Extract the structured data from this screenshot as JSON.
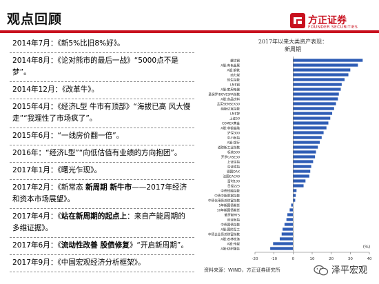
{
  "header": {
    "title": "观点回顾"
  },
  "logo": {
    "cn": "方正证券",
    "en": "FOUNDER SECURITIES"
  },
  "timeline": [
    {
      "parts": [
        {
          "t": "2014年7月：《新5%比旧8%好》。",
          "b": false
        }
      ]
    },
    {
      "parts": [
        {
          "t": "2014年8月：《论对熊市的最后一战》“5000点不是梦”。",
          "b": false
        }
      ]
    },
    {
      "parts": [
        {
          "t": "2014年12月：《改革牛》。",
          "b": false
        }
      ]
    },
    {
      "parts": [
        {
          "t": "2015年4月：《经济L型 牛市有顶部》“海拔已高 风大慢走”“我理性了市场疯了”。",
          "b": false
        }
      ]
    },
    {
      "parts": [
        {
          "t": "2015年6月：“一线房价翻一倍”。",
          "b": false
        }
      ]
    },
    {
      "parts": [
        {
          "t": "2016年：“经济L型”“向低估值有业绩的方向抱团”。",
          "b": false
        }
      ]
    },
    {
      "parts": [
        {
          "t": "2017年1月：《曙光乍现》。",
          "b": false
        }
      ]
    },
    {
      "parts": [
        {
          "t": "2017年2月：《新常态 ",
          "b": false
        },
        {
          "t": "新周期 新牛市",
          "b": true
        },
        {
          "t": "——2017年经济和资本市场展望》。",
          "b": false
        }
      ]
    },
    {
      "parts": [
        {
          "t": "2017年4月：《",
          "b": false
        },
        {
          "t": "站在新周期的起点上",
          "b": true
        },
        {
          "t": "：来自产能周期的多维证据》。",
          "b": false
        }
      ]
    },
    {
      "parts": [
        {
          "t": "2017年6月：《",
          "b": false
        },
        {
          "t": "流动性改善 股债修复",
          "b": true
        },
        {
          "t": "》“开启新周期”。",
          "b": false
        }
      ]
    },
    {
      "parts": [
        {
          "t": "2017年9月：《中国宏观经济分析框架》。",
          "b": false
        }
      ]
    }
  ],
  "chart_data": {
    "type": "bar",
    "orientation": "horizontal",
    "title": "2017年以来大类资产表现：",
    "subtitle": "新周期",
    "unit_label": "(%)",
    "xlim": [
      -20,
      40
    ],
    "xticks": [
      -20,
      -10,
      0,
      10,
      20,
      30,
      40
    ],
    "grid": false,
    "legend": "none",
    "bar_color": "#2f5db5",
    "categories": [
      "螺纹钢",
      "A股:有色金属",
      "A股:钢铁",
      "动力煤",
      "恒生指数",
      "LME铜",
      "A股:家用电器",
      "圣保罗IBOVESPA指数",
      "A股:食品饮料",
      "孟买SENSEX30",
      "纳斯达克指数",
      "LME锌",
      "上证50",
      "COMEX黄金",
      "A股:非银金融",
      "沪深300",
      "中小板指",
      "A股:银行",
      "道琼斯工业指数",
      "标普500",
      "开罗CASE30",
      "上证综指",
      "深证成指",
      "德国DAX",
      "法国CAC40",
      "富时100",
      "日经225",
      "中债短融指数",
      "中债中期票据指数",
      "中债信用债总财富指数",
      "5年期国债期货",
      "10年期国债期货",
      "俄罗斯RTS",
      "创业板指",
      "中债国债指数",
      "A股:国防军工",
      "中债企业债总财富指数",
      "A股:农林牧渔",
      "A股:传媒",
      "A股:纺织服装"
    ],
    "values": [
      36.5,
      34,
      30,
      29,
      27,
      25.5,
      25,
      24,
      23.5,
      22.5,
      21.5,
      20.5,
      19.5,
      18.5,
      17.5,
      16,
      15,
      14,
      13,
      12,
      11.5,
      10.5,
      9.5,
      9,
      8.5,
      6.5,
      5.5,
      1.8,
      1.4,
      1.1,
      -1,
      -1.8,
      -3,
      -3.5,
      -4.5,
      -5.5,
      -6,
      -7,
      -10.5,
      -12
    ]
  },
  "footer": {
    "source": "资料来源：WIND，方正证券研究所"
  },
  "watermark": {
    "text": "泽平宏观"
  }
}
